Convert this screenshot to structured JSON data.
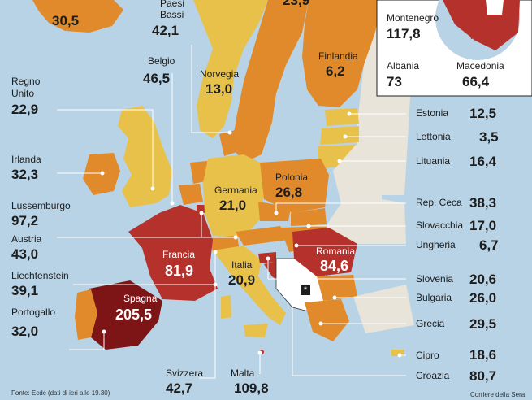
{
  "colors": {
    "sea": "#b8d3e6",
    "land_other": "#e9e4da",
    "band_low": "#e8c14a",
    "band_mid": "#e08a2c",
    "band_high": "#b5312b",
    "band_top": "#7d1416",
    "kosovo": "#ffffff",
    "leader_line": "#ffffff"
  },
  "countries": {
    "islanda": {
      "value": "30,5"
    },
    "paesi_bassi": {
      "name": "Paesi\nBassi",
      "value": "42,1"
    },
    "belgio": {
      "name": "Belgio",
      "value": "46,5"
    },
    "norvegia": {
      "name": "Norvegia",
      "value": "13,0"
    },
    "finlandia": {
      "name": "Finlandia",
      "value": "6,2"
    },
    "svezia": {
      "value": "23,9"
    },
    "regno_unito": {
      "name": "Regno\nUnito",
      "value": "22,9"
    },
    "irlanda": {
      "name": "Irlanda",
      "value": "32,3"
    },
    "lussemburgo": {
      "name": "Lussemburgo",
      "value": "97,2"
    },
    "austria": {
      "name": "Austria",
      "value": "43,0"
    },
    "liechtenstein": {
      "name": "Liechtenstein",
      "value": "39,1"
    },
    "portogallo": {
      "name": "Portogallo",
      "value": "32,0"
    },
    "spagna": {
      "name": "Spagna",
      "value": "205,5"
    },
    "francia": {
      "name": "Francia",
      "value": "81,9"
    },
    "germania": {
      "name": "Germania",
      "value": "21,0"
    },
    "polonia": {
      "name": "Polonia",
      "value": "26,8"
    },
    "italia": {
      "name": "Italia",
      "value": "20,9"
    },
    "romania": {
      "name": "Romania",
      "value": "84,6"
    },
    "svizzera": {
      "name": "Svizzera",
      "value": "42,7"
    },
    "malta": {
      "name": "Malta",
      "value": "109,8"
    },
    "estonia": {
      "name": "Estonia",
      "value": "12,5"
    },
    "lettonia": {
      "name": "Lettonia",
      "value": "3,5"
    },
    "lituania": {
      "name": "Lituania",
      "value": "16,4"
    },
    "rep_ceca": {
      "name": "Rep. Ceca",
      "value": "38,3"
    },
    "slovacchia": {
      "name": "Slovacchia",
      "value": "17,0"
    },
    "ungheria": {
      "name": "Ungheria",
      "value": "6,7"
    },
    "slovenia": {
      "name": "Slovenia",
      "value": "20,6"
    },
    "bulgaria": {
      "name": "Bulgaria",
      "value": "26,0"
    },
    "grecia": {
      "name": "Grecia",
      "value": "29,5"
    },
    "cipro": {
      "name": "Cipro",
      "value": "18,6"
    },
    "croazia": {
      "name": "Croazia",
      "value": "80,7"
    }
  },
  "inset": {
    "montenegro": {
      "name": "Montenegro",
      "value": "117,8"
    },
    "albania": {
      "name": "Albania",
      "value": "73"
    },
    "macedonia": {
      "name": "Macedonia",
      "value": "66,4"
    }
  },
  "kosovo_marker": "*",
  "footer": {
    "source": "Fonte: Ecdc (dati di ieri alle 19.30)",
    "credit": "Corriere della Sera"
  }
}
